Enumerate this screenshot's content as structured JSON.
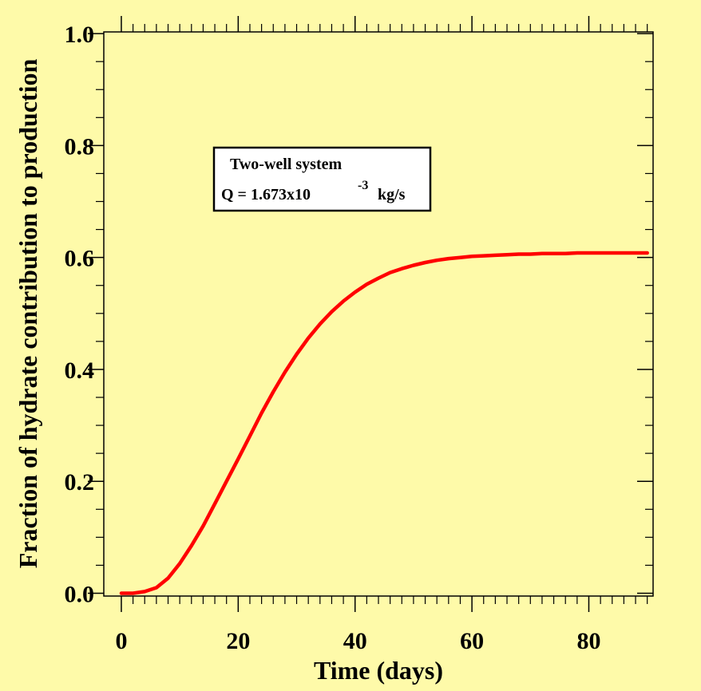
{
  "chart_data": {
    "type": "line",
    "title": "",
    "xlabel": "Time (days)",
    "ylabel": "Fraction of hydrate contribution to production",
    "xlim": [
      -3,
      91
    ],
    "ylim": [
      -0.005,
      1.003
    ],
    "x_ticks": [
      0,
      20,
      40,
      60,
      80
    ],
    "y_ticks": [
      0.0,
      0.2,
      0.4,
      0.6,
      0.8,
      1.0
    ],
    "x_tick_labels": [
      "0",
      "20",
      "40",
      "60",
      "80"
    ],
    "y_tick_labels": [
      "0.0",
      "0.2",
      "0.4",
      "0.6",
      "0.8",
      "1.0"
    ],
    "grid": false,
    "legend": {
      "line1": "Two-well system",
      "line2_prefix": "Q = 1.673x10",
      "line2_exponent": "-3",
      "line2_suffix": "kg/s"
    },
    "series": [
      {
        "color": "#ff0000",
        "x": [
          0,
          2,
          4,
          6,
          8,
          10,
          12,
          14,
          16,
          18,
          20,
          22,
          24,
          26,
          28,
          30,
          32,
          34,
          36,
          38,
          40,
          42,
          44,
          46,
          48,
          50,
          52,
          54,
          56,
          58,
          60,
          62,
          64,
          66,
          68,
          70,
          72,
          74,
          76,
          78,
          80,
          82,
          84,
          86,
          88,
          90
        ],
        "y": [
          0.0,
          0.0,
          0.003,
          0.01,
          0.027,
          0.053,
          0.085,
          0.12,
          0.16,
          0.2,
          0.24,
          0.281,
          0.322,
          0.36,
          0.395,
          0.427,
          0.456,
          0.481,
          0.503,
          0.522,
          0.538,
          0.552,
          0.563,
          0.573,
          0.58,
          0.586,
          0.591,
          0.595,
          0.598,
          0.6,
          0.602,
          0.603,
          0.604,
          0.605,
          0.606,
          0.606,
          0.607,
          0.607,
          0.607,
          0.608,
          0.608,
          0.608,
          0.608,
          0.608,
          0.608,
          0.608
        ]
      }
    ]
  },
  "colors": {
    "background": "#fefaa9",
    "axes": "#000000",
    "legend_box": "#ffffff"
  }
}
